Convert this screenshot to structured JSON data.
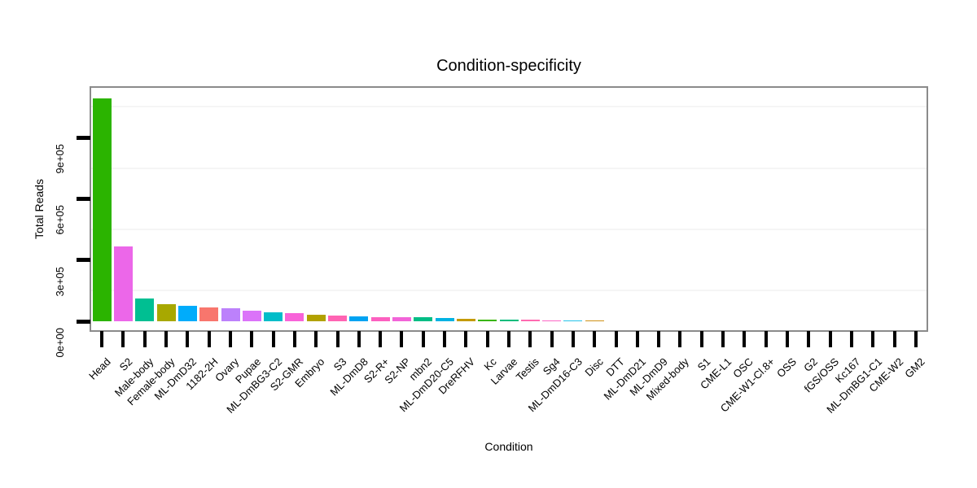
{
  "title": "Condition-specificity",
  "chart_data": {
    "type": "bar",
    "title": "Condition-specificity",
    "xlabel": "Condition",
    "ylabel": "Total Reads",
    "legend": "none",
    "grid": "faint horizontal minor gridlines",
    "ylim": [
      0,
      1150000
    ],
    "y_ticks": [
      {
        "label": "0e+00",
        "value": 0
      },
      {
        "label": "3e+05",
        "value": 300000
      },
      {
        "label": "6e+05",
        "value": 600000
      },
      {
        "label": "9e+05",
        "value": 900000
      }
    ],
    "minor_grid_values": [
      150000,
      450000,
      750000,
      1050000
    ],
    "categories": [
      "Head",
      "S2",
      "Male-body",
      "Female-body",
      "ML-DmD32",
      "1182-2H",
      "Ovary",
      "Pupae",
      "ML-DmBG3-C2",
      "S2-GMR",
      "Embryo",
      "S3",
      "ML-DmD8",
      "S2-R+",
      "S2-NP",
      "mbn2",
      "ML-DmD20-C5",
      "DreRFHV",
      "Kc",
      "Larvae",
      "Testis",
      "Sg4",
      "ML-DmD16-C3",
      "Disc",
      "DTT",
      "ML-DmD21",
      "ML-DmD9",
      "Mixed-body",
      "S1",
      "CME-L1",
      "OSC",
      "CME-W1-Cl.8+",
      "OSS",
      "G2",
      "fGS/OSS",
      "Kc167",
      "ML-DmBG1-C1",
      "CME-W2",
      "GM2"
    ],
    "values": [
      1090000,
      365000,
      113000,
      82000,
      76000,
      66000,
      64000,
      50000,
      44000,
      38000,
      30000,
      29000,
      22000,
      21000,
      20000,
      19000,
      15000,
      10000,
      7000,
      6500,
      6000,
      5500,
      5000,
      4500,
      0,
      0,
      0,
      0,
      0,
      0,
      0,
      0,
      0,
      0,
      0,
      0,
      0,
      0,
      0
    ],
    "bar_colors": [
      "#2BB400",
      "#EC67E9",
      "#00BF92",
      "#A8A800",
      "#00ACFB",
      "#F8766D",
      "#BC81FB",
      "#DB73F9",
      "#00BDC9",
      "#F863D9",
      "#B2A100",
      "#FF64B3",
      "#00A3F2",
      "#FC60C0",
      "#F264D8",
      "#00BD85",
      "#00B2E3",
      "#C49A00",
      "#39B600",
      "#00BC7C",
      "#FF6BB0",
      "#FB68C5",
      "#26C3E9",
      "#CE9118",
      null,
      null,
      null,
      null,
      null,
      null,
      null,
      null,
      null,
      null,
      null,
      null,
      null,
      null,
      null
    ]
  },
  "colors": {
    "background": "#FFFFFF",
    "panel_border": "#8B8B8B",
    "axis_tick": "#000000",
    "gridline": "#F5F5F5",
    "text": "#000000"
  }
}
